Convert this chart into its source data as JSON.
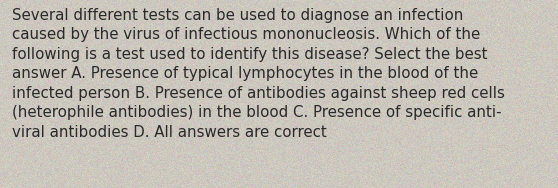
{
  "lines": [
    "Several different tests can be used to diagnose an infection",
    "caused by the virus of infectious mononucleosis. Which of the",
    "following is a test used to identify this disease? Select the best",
    "answer A. Presence of typical lymphocytes in the blood of the",
    "infected person B. Presence of antibodies against sheep red cells",
    "(heterophile antibodies) in the blood C. Presence of specific anti-",
    "viral antibodies D. All answers are correct"
  ],
  "background_color": "#cdc8bf",
  "text_color": "#2a2a2a",
  "font_size": 10.8,
  "fig_width": 5.58,
  "fig_height": 1.88,
  "dpi": 100
}
